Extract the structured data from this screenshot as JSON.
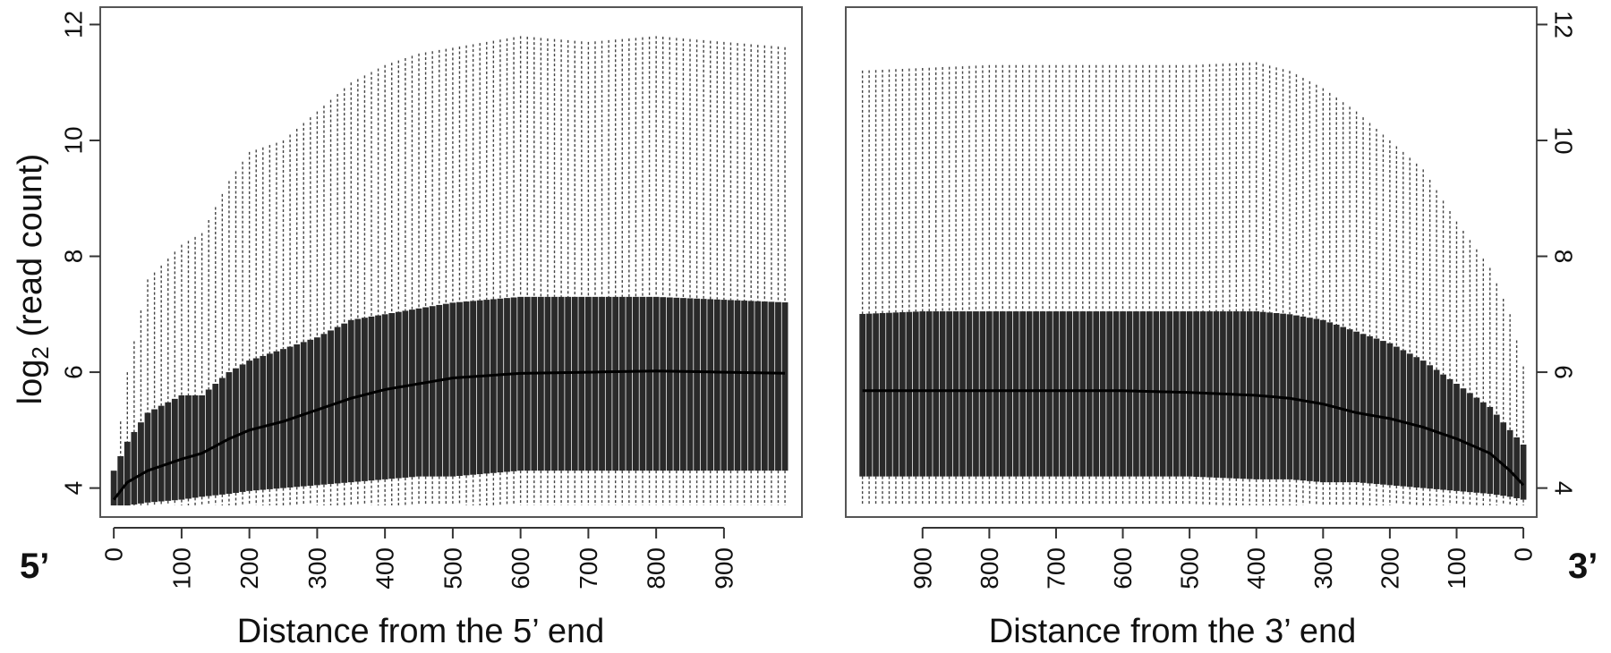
{
  "chart_data": {
    "type": "box",
    "ylabel_base": "log",
    "ylabel_sub": "2",
    "ylabel_rest": " (read count)",
    "colors": {
      "box": "#2a2a2a",
      "median": "#000000",
      "whisker": "#444444",
      "frame": "#555555"
    },
    "panels": [
      {
        "id": "five-prime",
        "end_label": "5’",
        "xlabel": "Distance from the 5’ end",
        "x_ticks": [
          "0",
          "100",
          "200",
          "300",
          "400",
          "500",
          "600",
          "700",
          "800",
          "900"
        ],
        "x_range": [
          -20,
          1015
        ],
        "y_ticks": [
          "4",
          "6",
          "8",
          "10",
          "12"
        ],
        "y_range": [
          3.5,
          12.3
        ],
        "y_axis_side": "left",
        "profile": {
          "x": [
            0,
            20,
            50,
            100,
            130,
            170,
            200,
            250,
            300,
            350,
            400,
            450,
            500,
            600,
            700,
            800,
            900,
            1000
          ],
          "upper": [
            4.3,
            6.0,
            7.6,
            8.2,
            8.4,
            9.3,
            9.8,
            10.0,
            10.5,
            11.0,
            11.3,
            11.5,
            11.6,
            11.8,
            11.7,
            11.8,
            11.7,
            11.6
          ],
          "q3": [
            4.3,
            4.8,
            5.3,
            5.6,
            5.6,
            6.0,
            6.2,
            6.4,
            6.6,
            6.9,
            7.0,
            7.1,
            7.2,
            7.3,
            7.3,
            7.3,
            7.25,
            7.2
          ],
          "median": [
            3.8,
            4.1,
            4.3,
            4.5,
            4.6,
            4.85,
            5.0,
            5.15,
            5.35,
            5.55,
            5.7,
            5.8,
            5.9,
            5.98,
            6.0,
            6.02,
            6.0,
            5.98
          ],
          "q1": [
            3.7,
            3.7,
            3.75,
            3.8,
            3.85,
            3.9,
            3.95,
            4.0,
            4.05,
            4.1,
            4.15,
            4.2,
            4.2,
            4.3,
            4.3,
            4.3,
            4.3,
            4.3
          ],
          "lower": [
            3.7,
            3.7,
            3.7,
            3.7,
            3.7,
            3.7,
            3.7,
            3.7,
            3.7,
            3.7,
            3.7,
            3.7,
            3.7,
            3.7,
            3.7,
            3.7,
            3.7,
            3.7
          ]
        }
      },
      {
        "id": "three-prime",
        "end_label": "3’",
        "xlabel": "Distance from the 3’ end",
        "x_ticks": [
          "900",
          "800",
          "700",
          "600",
          "500",
          "400",
          "300",
          "200",
          "100",
          "0"
        ],
        "x_range": [
          1015,
          -20
        ],
        "y_ticks": [
          "4",
          "6",
          "8",
          "10",
          "12"
        ],
        "y_range": [
          3.5,
          12.3
        ],
        "y_axis_side": "right",
        "profile": {
          "x": [
            0,
            20,
            50,
            100,
            150,
            200,
            250,
            300,
            350,
            400,
            500,
            600,
            700,
            800,
            900,
            1000
          ],
          "upper": [
            6.1,
            7.0,
            7.8,
            8.6,
            9.5,
            10.0,
            10.5,
            10.9,
            11.2,
            11.35,
            11.3,
            11.3,
            11.3,
            11.3,
            11.25,
            11.2
          ],
          "q3": [
            4.75,
            5.0,
            5.4,
            5.8,
            6.2,
            6.5,
            6.7,
            6.9,
            7.0,
            7.05,
            7.05,
            7.05,
            7.05,
            7.05,
            7.05,
            7.0
          ],
          "median": [
            4.05,
            4.3,
            4.6,
            4.85,
            5.05,
            5.2,
            5.3,
            5.45,
            5.55,
            5.6,
            5.65,
            5.68,
            5.68,
            5.68,
            5.68,
            5.68
          ],
          "q1": [
            3.8,
            3.85,
            3.9,
            3.95,
            4.0,
            4.05,
            4.1,
            4.1,
            4.15,
            4.15,
            4.2,
            4.2,
            4.2,
            4.2,
            4.2,
            4.2
          ],
          "lower": [
            3.7,
            3.7,
            3.7,
            3.7,
            3.7,
            3.7,
            3.7,
            3.7,
            3.7,
            3.7,
            3.7,
            3.7,
            3.7,
            3.7,
            3.7,
            3.7
          ]
        }
      }
    ]
  }
}
